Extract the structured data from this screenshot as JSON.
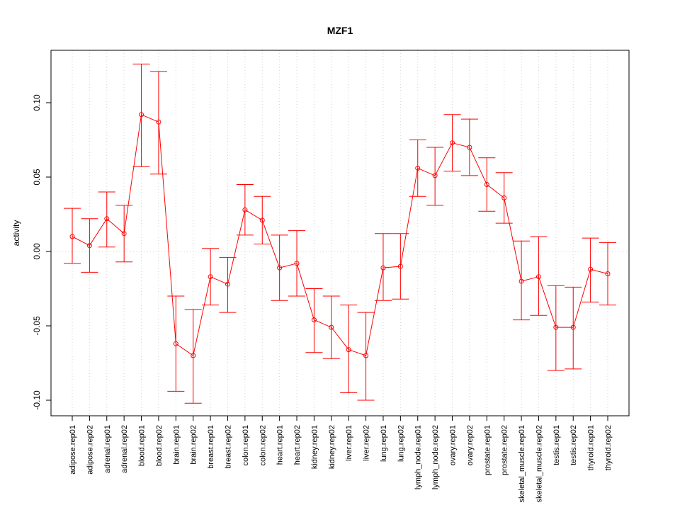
{
  "chart_data": {
    "type": "line",
    "title": "MZF1",
    "xlabel": "",
    "ylabel": "activity",
    "ylim": [
      -0.11,
      0.135
    ],
    "yticks": [
      -0.1,
      -0.05,
      0.0,
      0.05,
      0.1
    ],
    "ytick_labels": [
      "-0.10",
      "-0.05",
      "0.00",
      "0.05",
      "0.10"
    ],
    "grid": true,
    "color": "#ff0000",
    "categories": [
      "adipose.rep01",
      "adipose.rep02",
      "adrenal.rep01",
      "adrenal.rep02",
      "blood.rep01",
      "blood.rep02",
      "brain.rep01",
      "brain.rep02",
      "breast.rep01",
      "breast.rep02",
      "colon.rep01",
      "colon.rep02",
      "heart.rep01",
      "heart.rep02",
      "kidney.rep01",
      "kidney.rep02",
      "liver.rep01",
      "liver.rep02",
      "lung.rep01",
      "lung.rep02",
      "lymph_node.rep01",
      "lymph_node.rep02",
      "ovary.rep01",
      "ovary.rep02",
      "prostate.rep01",
      "prostate.rep02",
      "skeletal_muscle.rep01",
      "skeletal_muscle.rep02",
      "testis.rep01",
      "testis.rep02",
      "thyroid.rep01",
      "thyroid.rep02"
    ],
    "values": [
      0.01,
      0.004,
      0.022,
      0.012,
      0.092,
      0.087,
      -0.062,
      -0.07,
      -0.017,
      -0.022,
      0.028,
      0.021,
      -0.011,
      -0.008,
      -0.046,
      -0.051,
      -0.066,
      -0.07,
      -0.011,
      -0.01,
      0.056,
      0.051,
      0.073,
      0.07,
      0.045,
      0.036,
      -0.02,
      -0.017,
      -0.051,
      -0.051,
      -0.012,
      -0.015
    ],
    "lower": [
      -0.008,
      -0.014,
      0.003,
      -0.007,
      0.057,
      0.052,
      -0.094,
      -0.102,
      -0.036,
      -0.041,
      0.011,
      0.005,
      -0.033,
      -0.03,
      -0.068,
      -0.072,
      -0.095,
      -0.1,
      -0.033,
      -0.032,
      0.037,
      0.031,
      0.054,
      0.051,
      0.027,
      0.019,
      -0.046,
      -0.043,
      -0.08,
      -0.079,
      -0.034,
      -0.036
    ],
    "upper": [
      0.029,
      0.022,
      0.04,
      0.031,
      0.126,
      0.121,
      -0.03,
      -0.039,
      0.002,
      -0.004,
      0.045,
      0.037,
      0.011,
      0.014,
      -0.025,
      -0.03,
      -0.036,
      -0.041,
      0.012,
      0.012,
      0.075,
      0.07,
      0.092,
      0.089,
      0.063,
      0.053,
      0.007,
      0.01,
      -0.023,
      -0.024,
      0.009,
      0.006
    ]
  }
}
